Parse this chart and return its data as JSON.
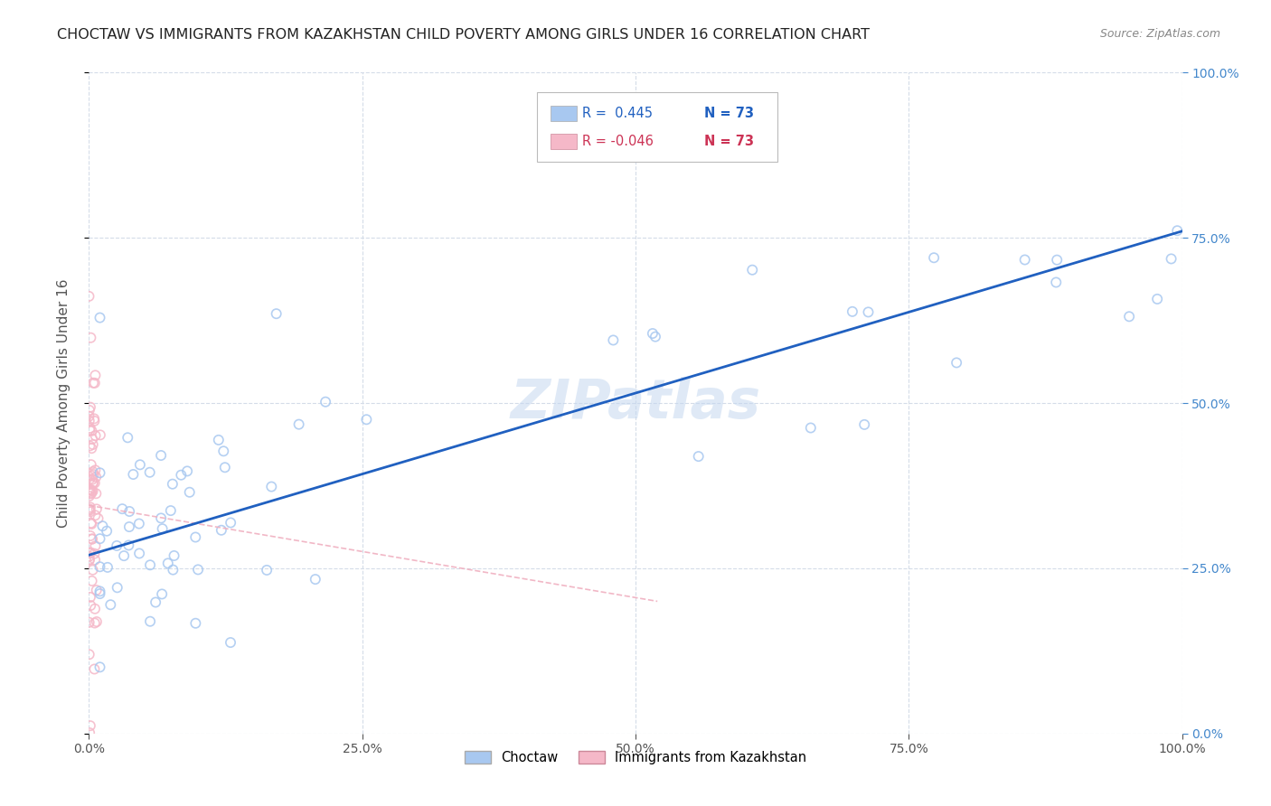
{
  "title": "CHOCTAW VS IMMIGRANTS FROM KAZAKHSTAN CHILD POVERTY AMONG GIRLS UNDER 16 CORRELATION CHART",
  "source": "Source: ZipAtlas.com",
  "ylabel": "Child Poverty Among Girls Under 16",
  "watermark": "ZIPatlas",
  "legend_r1": "R =  0.445",
  "legend_n1": "N = 73",
  "legend_r2": "R = -0.046",
  "legend_n2": "N = 73",
  "legend_label1": "Choctaw",
  "legend_label2": "Immigrants from Kazakhstan",
  "choctaw_color": "#a8c8f0",
  "choctaw_edge": "#7aabdc",
  "kazakh_color": "#f5b8c8",
  "kazakh_edge": "#e07898",
  "trend1_color": "#2060c0",
  "trend2_color": "#f0b0c0",
  "xlim": [
    0,
    1.0
  ],
  "ylim": [
    0,
    1.0
  ],
  "xticks": [
    0,
    0.25,
    0.5,
    0.75,
    1.0
  ],
  "yticks": [
    0,
    0.25,
    0.5,
    0.75,
    1.0
  ],
  "xticklabels": [
    "0.0%",
    "25.0%",
    "50.0%",
    "75.0%",
    "100.0%"
  ],
  "yticklabels_right": [
    "0.0%",
    "25.0%",
    "50.0%",
    "75.0%",
    "100.0%"
  ],
  "trend1_x0": 0.0,
  "trend1_y0": 0.27,
  "trend1_x1": 1.0,
  "trend1_y1": 0.76,
  "trend2_x0": 0.0,
  "trend2_y0": 0.345,
  "trend2_x1": 0.52,
  "trend2_y1": 0.2,
  "bg_color": "#ffffff",
  "grid_color": "#d4dce8",
  "title_color": "#222222",
  "axis_color": "#555555",
  "right_tick_color": "#4488cc",
  "marker_size": 55,
  "marker_lw": 1.2,
  "title_fontsize": 11.5,
  "source_fontsize": 9,
  "watermark_fontsize": 44,
  "watermark_color": "#c5d8f0",
  "watermark_alpha": 0.55,
  "seed": 1234
}
